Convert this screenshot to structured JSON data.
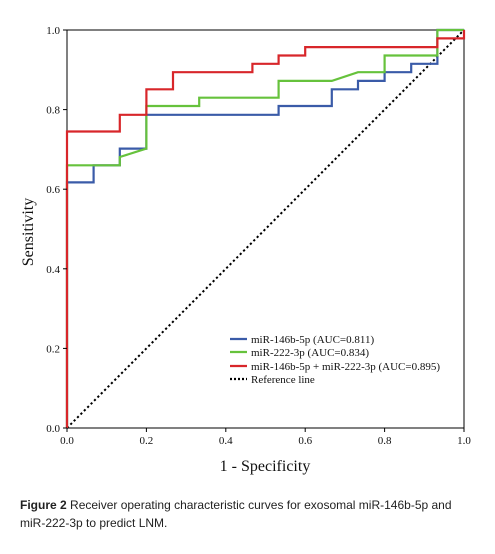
{
  "chart_data": {
    "type": "line",
    "xlabel": "1 - Specificity",
    "ylabel": "Sensitivity",
    "xlim": [
      0,
      1
    ],
    "ylim": [
      0,
      1
    ],
    "x_ticks": [
      "0.0",
      "0.2",
      "0.4",
      "0.6",
      "0.8",
      "1.0"
    ],
    "y_ticks": [
      "0.0",
      "0.2",
      "0.4",
      "0.6",
      "0.8",
      "1.0"
    ],
    "grid": false,
    "legend_position": "bottom-right",
    "series": [
      {
        "name": "miR-146b-5p (AUC=0.811)",
        "color": "#3a5ba8",
        "points": [
          [
            0,
            0
          ],
          [
            0,
            0.617
          ],
          [
            0.067,
            0.617
          ],
          [
            0.067,
            0.66
          ],
          [
            0.133,
            0.66
          ],
          [
            0.133,
            0.702
          ],
          [
            0.2,
            0.702
          ],
          [
            0.2,
            0.787
          ],
          [
            0.533,
            0.787
          ],
          [
            0.533,
            0.809
          ],
          [
            0.667,
            0.809
          ],
          [
            0.667,
            0.851
          ],
          [
            0.733,
            0.851
          ],
          [
            0.733,
            0.872
          ],
          [
            0.8,
            0.872
          ],
          [
            0.8,
            0.894
          ],
          [
            0.867,
            0.894
          ],
          [
            0.867,
            0.915
          ],
          [
            0.933,
            0.915
          ],
          [
            0.933,
            1.0
          ],
          [
            1,
            1
          ]
        ]
      },
      {
        "name": "miR-222-3p  (AUC=0.834)",
        "color": "#66c23c",
        "points": [
          [
            0,
            0
          ],
          [
            0,
            0.66
          ],
          [
            0.133,
            0.66
          ],
          [
            0.133,
            0.681
          ],
          [
            0.2,
            0.702
          ],
          [
            0.2,
            0.809
          ],
          [
            0.333,
            0.809
          ],
          [
            0.333,
            0.83
          ],
          [
            0.533,
            0.83
          ],
          [
            0.533,
            0.872
          ],
          [
            0.667,
            0.872
          ],
          [
            0.733,
            0.894
          ],
          [
            0.8,
            0.894
          ],
          [
            0.8,
            0.936
          ],
          [
            0.933,
            0.936
          ],
          [
            0.933,
            1.0
          ],
          [
            1,
            1
          ]
        ]
      },
      {
        "name": "miR-146b-5p + miR-222-3p  (AUC=0.895)",
        "color": "#d8262a",
        "points": [
          [
            0,
            0
          ],
          [
            0,
            0.745
          ],
          [
            0.133,
            0.745
          ],
          [
            0.133,
            0.787
          ],
          [
            0.2,
            0.787
          ],
          [
            0.2,
            0.851
          ],
          [
            0.267,
            0.851
          ],
          [
            0.267,
            0.894
          ],
          [
            0.467,
            0.894
          ],
          [
            0.467,
            0.915
          ],
          [
            0.533,
            0.915
          ],
          [
            0.533,
            0.936
          ],
          [
            0.6,
            0.936
          ],
          [
            0.6,
            0.957
          ],
          [
            0.933,
            0.957
          ],
          [
            0.933,
            0.979
          ],
          [
            1,
            0.979
          ],
          [
            1,
            1
          ]
        ]
      },
      {
        "name": "Reference line",
        "color": "#000000",
        "dashed": true,
        "points": [
          [
            0,
            0
          ],
          [
            1,
            1
          ]
        ]
      }
    ]
  },
  "caption": {
    "label": "Figure 2",
    "text": " Receiver operating characteristic curves for exosomal miR-146b-5p and miR-222-3p to predict LNM."
  }
}
